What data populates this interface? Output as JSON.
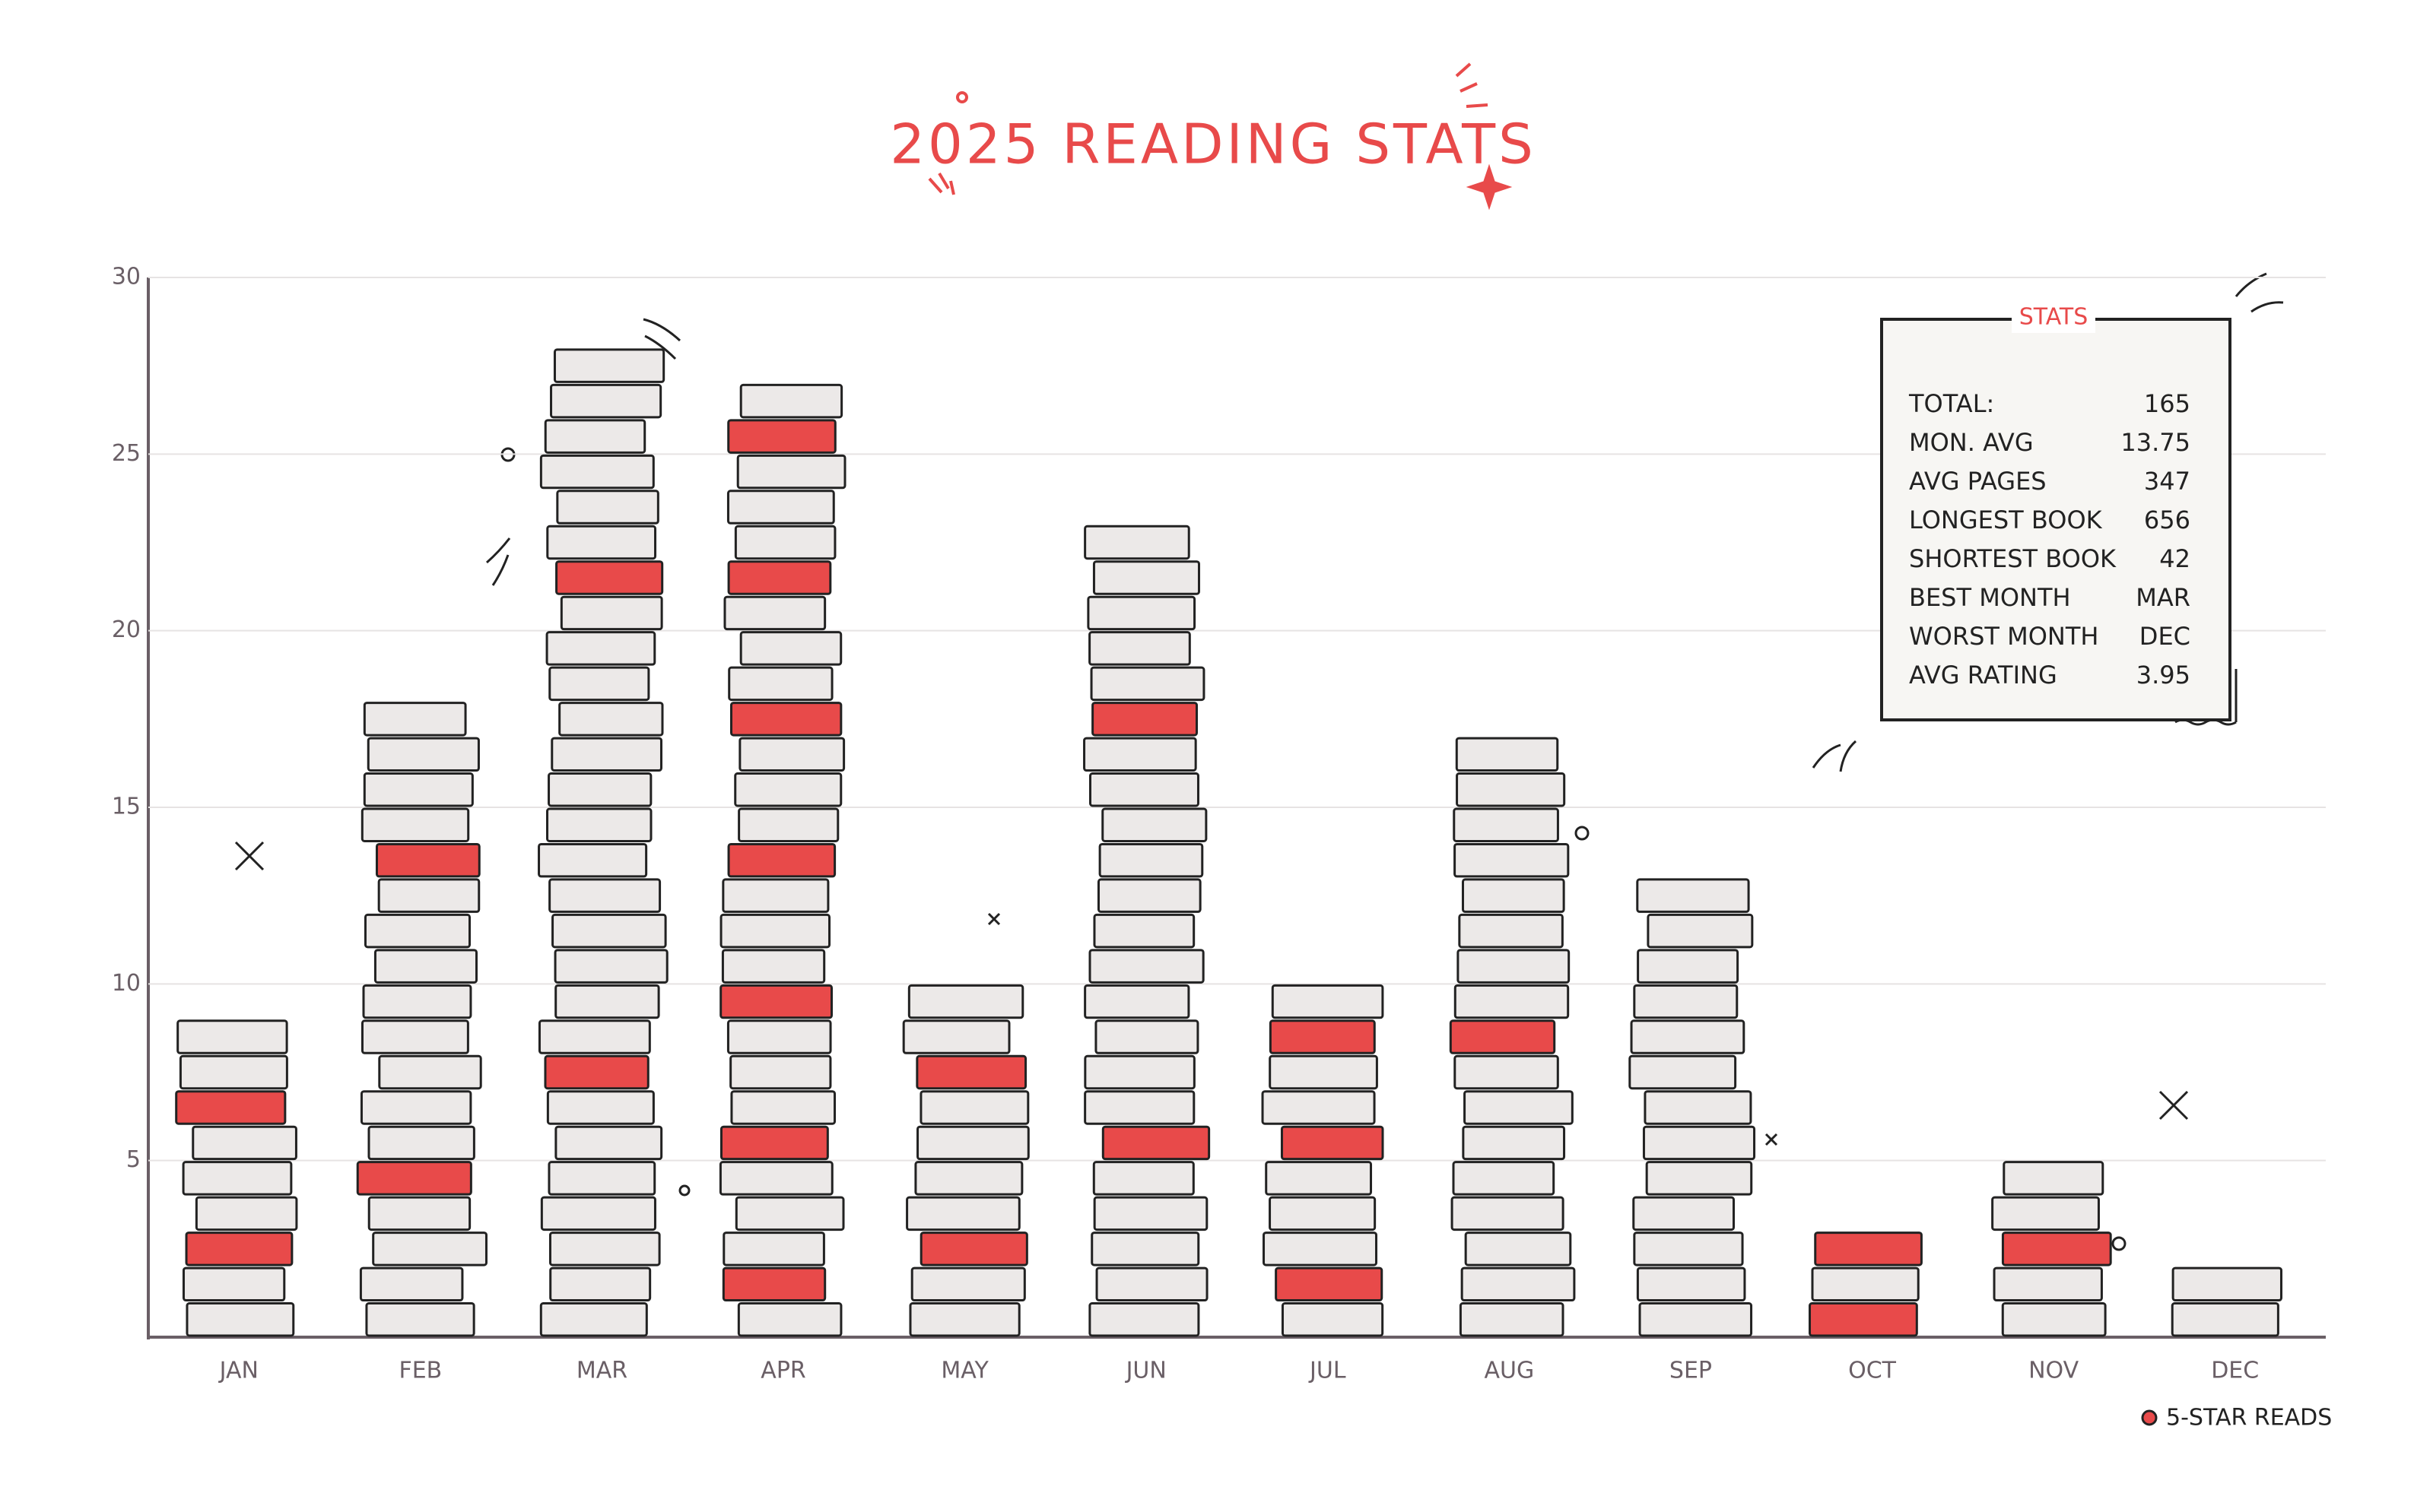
{
  "chart_data": {
    "type": "book-stack",
    "title": "2025 READING STATS",
    "categories": [
      "JAN",
      "FEB",
      "MAR",
      "APR",
      "MAY",
      "JUN",
      "JUL",
      "AUG",
      "SEP",
      "OCT",
      "NOV",
      "DEC"
    ],
    "values": [
      9,
      18,
      28,
      27,
      10,
      23,
      10,
      17,
      13,
      3,
      5,
      2
    ],
    "color": "#ece9e8",
    "highlight": {
      "name": "5-STAR READS",
      "color": "#e84a4a",
      "values": [
        2,
        2,
        2,
        7,
        2,
        2,
        3,
        1,
        0,
        2,
        1,
        0
      ]
    },
    "ylim": [
      0,
      30
    ],
    "yticks": [
      5,
      10,
      15,
      20,
      25,
      30
    ],
    "grid": true,
    "stats": {
      "title": "STATS",
      "rows": [
        [
          "TOTAL:",
          165
        ],
        [
          "MON. AVG",
          13.75
        ],
        [
          "AVG PAGES",
          347
        ],
        [
          "LONGEST BOOK",
          656
        ],
        [
          "SHORTEST BOOK",
          42
        ],
        [
          "BEST MONTH",
          "MAR"
        ],
        [
          "WORST MONTH",
          "DEC"
        ],
        [
          "AVG RATING",
          3.95
        ]
      ]
    }
  }
}
